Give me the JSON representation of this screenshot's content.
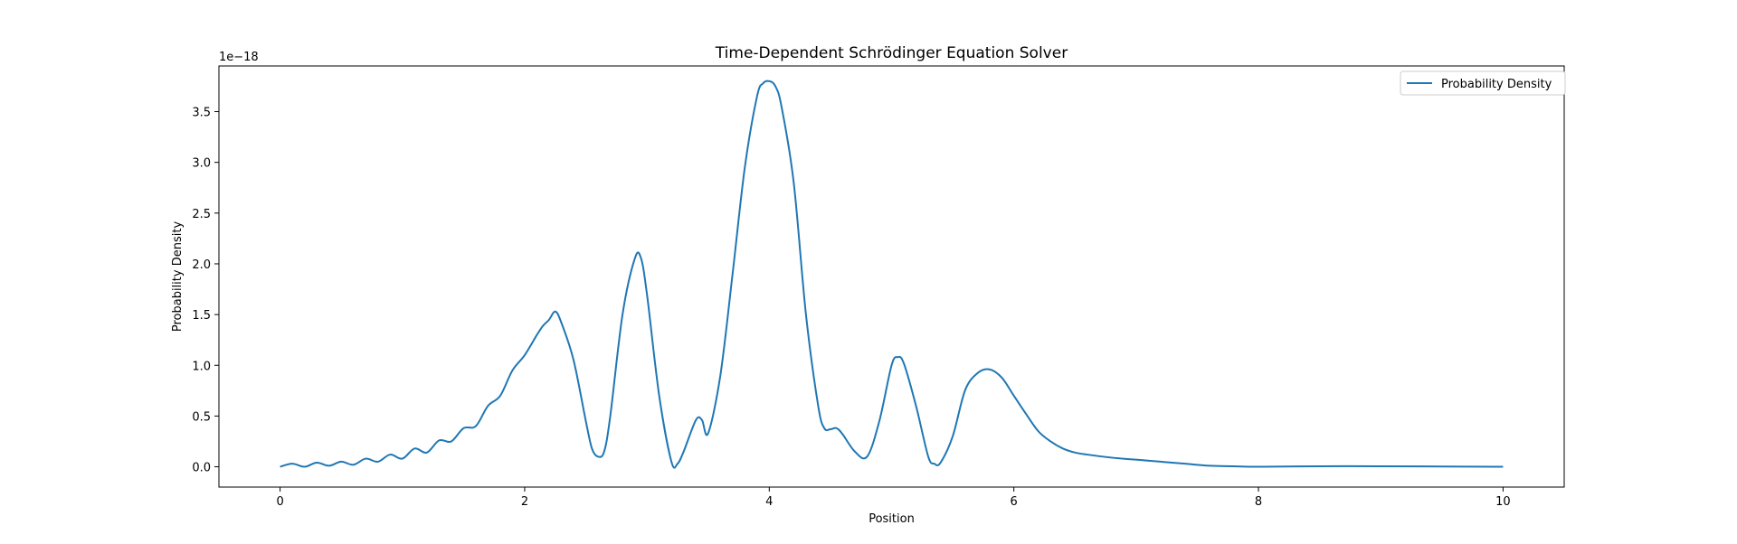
{
  "chart_data": {
    "type": "line",
    "title": "Time-Dependent Schrödinger Equation Solver",
    "xlabel": "Position",
    "ylabel": "Probability Density",
    "y_scale_label": "1e−18",
    "xlim": [
      -0.5,
      10.5
    ],
    "ylim": [
      -0.2,
      3.95
    ],
    "xticks": [
      0,
      2,
      4,
      6,
      8,
      10
    ],
    "xtick_labels": [
      "0",
      "2",
      "4",
      "6",
      "8",
      "10"
    ],
    "yticks": [
      0.0,
      0.5,
      1.0,
      1.5,
      2.0,
      2.5,
      3.0,
      3.5
    ],
    "ytick_labels": [
      "0.0",
      "0.5",
      "1.0",
      "1.5",
      "2.0",
      "2.5",
      "3.0",
      "3.5"
    ],
    "grid": false,
    "legend_position": "top-right",
    "series": [
      {
        "name": "Probability Density",
        "color": "#1f77b4",
        "x": [
          0,
          0.1,
          0.2,
          0.3,
          0.4,
          0.5,
          0.6,
          0.7,
          0.8,
          0.9,
          1.0,
          1.1,
          1.2,
          1.3,
          1.4,
          1.5,
          1.6,
          1.7,
          1.8,
          1.9,
          2.0,
          2.1,
          2.15,
          2.2,
          2.25,
          2.3,
          2.4,
          2.5,
          2.55,
          2.6,
          2.65,
          2.7,
          2.8,
          2.9,
          2.95,
          3.0,
          3.1,
          3.2,
          3.25,
          3.3,
          3.4,
          3.45,
          3.5,
          3.6,
          3.7,
          3.8,
          3.9,
          3.95,
          4.0,
          4.05,
          4.1,
          4.2,
          4.3,
          4.4,
          4.45,
          4.5,
          4.55,
          4.6,
          4.7,
          4.8,
          4.9,
          5.0,
          5.05,
          5.1,
          5.2,
          5.3,
          5.35,
          5.4,
          5.5,
          5.6,
          5.7,
          5.8,
          5.9,
          6.0,
          6.1,
          6.2,
          6.3,
          6.4,
          6.5,
          6.6,
          6.8,
          7.0,
          7.2,
          7.4,
          7.6,
          7.8,
          8.0,
          8.5,
          9.0,
          9.5,
          10.0
        ],
        "values": [
          0.0,
          0.03,
          0.0,
          0.04,
          0.01,
          0.05,
          0.02,
          0.08,
          0.05,
          0.12,
          0.08,
          0.18,
          0.14,
          0.26,
          0.25,
          0.38,
          0.4,
          0.6,
          0.7,
          0.95,
          1.1,
          1.3,
          1.39,
          1.45,
          1.53,
          1.42,
          1.05,
          0.45,
          0.18,
          0.1,
          0.15,
          0.5,
          1.5,
          2.05,
          2.06,
          1.7,
          0.7,
          0.05,
          0.03,
          0.15,
          0.46,
          0.46,
          0.33,
          0.9,
          1.9,
          2.95,
          3.65,
          3.78,
          3.8,
          3.75,
          3.55,
          2.8,
          1.5,
          0.6,
          0.38,
          0.37,
          0.38,
          0.32,
          0.15,
          0.1,
          0.45,
          1.0,
          1.08,
          1.02,
          0.6,
          0.1,
          0.03,
          0.04,
          0.3,
          0.75,
          0.92,
          0.96,
          0.88,
          0.7,
          0.52,
          0.35,
          0.25,
          0.18,
          0.14,
          0.12,
          0.09,
          0.07,
          0.05,
          0.03,
          0.01,
          0.005,
          0.0,
          0.005,
          0.005,
          0.003,
          0.0
        ]
      }
    ]
  }
}
